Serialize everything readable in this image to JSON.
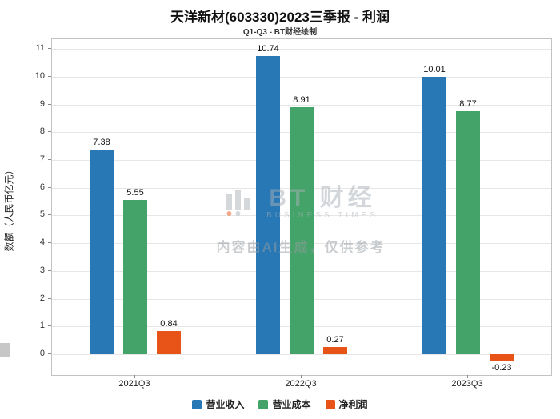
{
  "title": "天洋新材(603330)2023三季报 - 利润",
  "subtitle": "Q1-Q3 - BT财经绘制",
  "watermark": {
    "brand": "BT 财经",
    "brand_sub": "BUSINESS TIMES",
    "disclaimer": "内容由AI生成，仅供参考"
  },
  "chart_data": {
    "type": "bar",
    "title": "天洋新材(603330)2023三季报 - 利润",
    "subtitle": "Q1-Q3 - BT财经绘制",
    "categories": [
      "2021Q3",
      "2022Q3",
      "2023Q3"
    ],
    "series": [
      {
        "name": "营业收入",
        "color": "#2878b5",
        "values": [
          7.38,
          10.74,
          10.01
        ]
      },
      {
        "name": "营业成本",
        "color": "#44a368",
        "values": [
          5.55,
          8.91,
          8.77
        ]
      },
      {
        "name": "净利润",
        "color": "#e85418",
        "values": [
          0.84,
          0.27,
          -0.23
        ]
      }
    ],
    "xlabel": "",
    "ylabel": "数额（人民币亿元）",
    "ylim": [
      -0.75,
      11.35
    ],
    "yticks": [
      0,
      1,
      2,
      3,
      4,
      5,
      6,
      7,
      8,
      9,
      10,
      11
    ],
    "grid": true,
    "legend_position": "bottom"
  }
}
